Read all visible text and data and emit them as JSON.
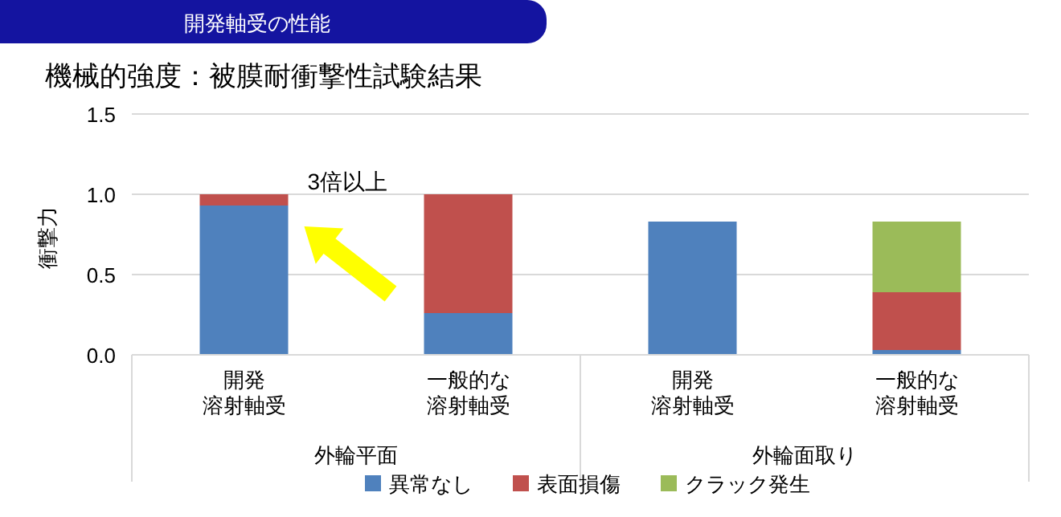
{
  "chart_data": {
    "type": "bar",
    "stacked": true,
    "title": "機械的強度：被膜耐衝撃性試験結果",
    "ylabel": "衝撃力",
    "categories": [
      "開発溶射軸受",
      "一般的な溶射軸受",
      "開発溶射軸受",
      "一般的な溶射軸受"
    ],
    "series": [
      {
        "name": "異常なし",
        "color": "#4f81bd",
        "values": [
          0.93,
          0.26,
          0.83,
          0.03
        ]
      },
      {
        "name": "表面損傷",
        "color": "#c0504d",
        "values": [
          0.07,
          0.74,
          null,
          0.36
        ]
      },
      {
        "name": "クラック発生",
        "color": "#9bbb59",
        "values": [
          null,
          null,
          null,
          0.44
        ]
      }
    ],
    "ylim": [
      0,
      1.5
    ],
    "yticks": [
      {
        "value": 0,
        "label": "0.0"
      },
      {
        "value": 0.5,
        "label": "0.5"
      },
      {
        "value": 1,
        "label": "1.0"
      },
      {
        "value": 1.5,
        "label": "1.5"
      }
    ],
    "grid": "y",
    "legend": "bottom",
    "annotations": [
      "開発軸受の性能",
      "外輪平面",
      "外輪面取り",
      {
        "text": "3倍以上",
        "x": "開発溶射軸受",
        "y": 1.0
      }
    ]
  }
}
